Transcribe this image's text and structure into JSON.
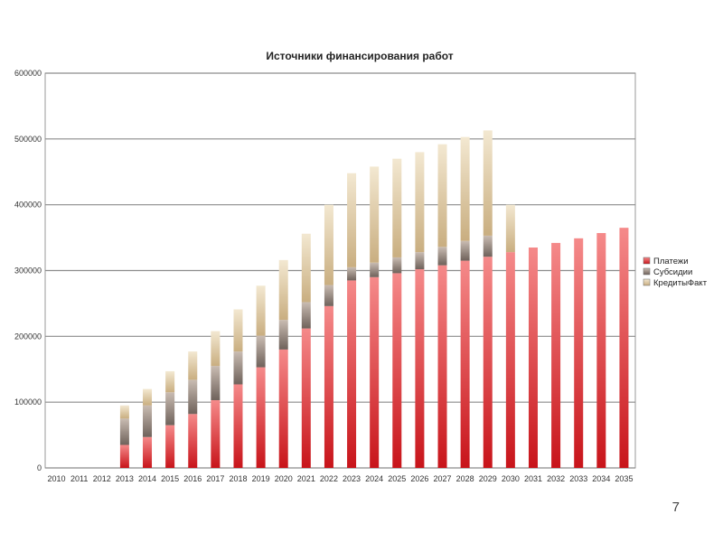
{
  "page": {
    "number": "7"
  },
  "chart_data": {
    "type": "bar",
    "stacked": true,
    "title": "Источники финансирования работ",
    "xlabel": "",
    "ylabel": "",
    "ylim": [
      0,
      600000
    ],
    "yticks": [
      "0",
      "100000",
      "200000",
      "300000",
      "400000",
      "500000",
      "600000"
    ],
    "grid": true,
    "legend_position": "right",
    "categories": [
      "2010",
      "2011",
      "2012",
      "2013",
      "2014",
      "2015",
      "2016",
      "2017",
      "2018",
      "2019",
      "2020",
      "2021",
      "2022",
      "2023",
      "2024",
      "2025",
      "2026",
      "2027",
      "2028",
      "2029",
      "2030",
      "2031",
      "2032",
      "2033",
      "2034",
      "2035"
    ],
    "series": [
      {
        "name": "Платежи",
        "color": "#d42b2b",
        "values": [
          0,
          0,
          0,
          35000,
          47000,
          65000,
          82000,
          103000,
          127000,
          153000,
          180000,
          212000,
          246000,
          285000,
          290000,
          296000,
          302000,
          308000,
          315000,
          321000,
          328000,
          335000,
          342000,
          349000,
          357000,
          365000
        ]
      },
      {
        "name": "Субсидии",
        "color": "#8c7a72",
        "values": [
          0,
          0,
          0,
          40000,
          48000,
          50000,
          52000,
          52000,
          50000,
          48000,
          45000,
          40000,
          32000,
          20000,
          22000,
          24000,
          26000,
          28000,
          30000,
          32000,
          0,
          0,
          0,
          0,
          0,
          0
        ]
      },
      {
        "name": "КредитыФакт",
        "color": "#d8c49a",
        "values": [
          0,
          0,
          0,
          20000,
          25000,
          32000,
          43000,
          53000,
          64000,
          76000,
          91000,
          104000,
          122000,
          143000,
          146000,
          150000,
          152000,
          156000,
          158000,
          160000,
          72000,
          0,
          0,
          0,
          0,
          0
        ]
      }
    ]
  }
}
